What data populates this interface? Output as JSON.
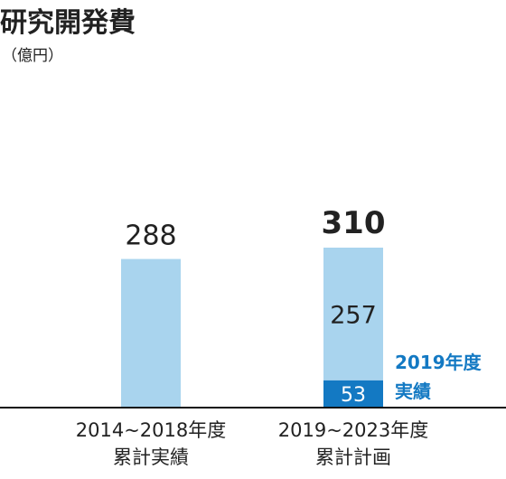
{
  "title": "研究開発費",
  "unit": "（億円）",
  "colors": {
    "light_bar": "#a9d4ee",
    "dark_bar": "#1379c3",
    "actual_label": "#1379c3",
    "text": "#222222",
    "baseline": "#111111",
    "on_dark_text": "#ffffff"
  },
  "chart_data": {
    "type": "bar",
    "stacked": true,
    "ylim": [
      0,
      310
    ],
    "bars": [
      {
        "label_lines": [
          "2014~2018年度",
          "累計実績"
        ],
        "total": 288,
        "total_label": "288",
        "total_bold": false,
        "segments": [
          {
            "value": 288,
            "color": "light"
          }
        ]
      },
      {
        "label_lines": [
          "2019~2023年度",
          "累計計画"
        ],
        "total": 310,
        "total_label": "310",
        "total_bold": true,
        "segments": [
          {
            "value": 53,
            "label": "53",
            "color": "dark"
          },
          {
            "value": 257,
            "label": "257",
            "color": "light"
          }
        ]
      }
    ],
    "annotation": [
      "2019年度",
      "実績"
    ]
  }
}
